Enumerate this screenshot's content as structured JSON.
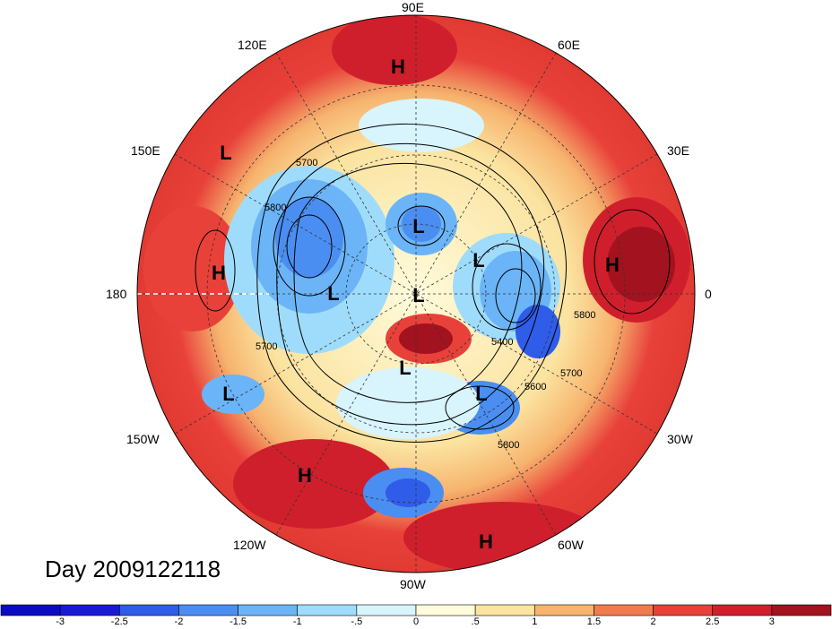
{
  "title": "Day 2009122118",
  "longitude_labels": {
    "lon_90E": "90E",
    "lon_120E": "120E",
    "lon_60E": "60E",
    "lon_150E": "150E",
    "lon_30E": "30E",
    "lon_180": "180",
    "lon_0": "0",
    "lon_150W": "150W",
    "lon_30W": "30W",
    "lon_120W": "120W",
    "lon_60W": "60W",
    "lon_90W": "90W"
  },
  "pressure_centers": [
    {
      "type": "H"
    },
    {
      "type": "L"
    },
    {
      "type": "H"
    },
    {
      "type": "L"
    },
    {
      "type": "L"
    },
    {
      "type": "L"
    },
    {
      "type": "L"
    },
    {
      "type": "H"
    },
    {
      "type": "L"
    },
    {
      "type": "L"
    },
    {
      "type": "L"
    },
    {
      "type": "H"
    },
    {
      "type": "H"
    }
  ],
  "contour_labels": {
    "c5700a": "5700",
    "c5800a": "5800",
    "c5700b": "5700",
    "c5400": "5400",
    "c5600": "5600",
    "c5700c": "5700",
    "c5800b": "5800",
    "c5800c": "5800"
  },
  "colorbar": {
    "tick_labels": [
      "-3",
      "-2.5",
      "-2",
      "-1.5",
      "-1",
      "-.5",
      "0",
      ".5",
      "1",
      "1.5",
      "2",
      "2.5",
      "3"
    ],
    "colors": [
      "#1a1ad6",
      "#2f5ce8",
      "#4a8ef2",
      "#6bb4f7",
      "#9fdcfb",
      "#d8f4fd",
      "#fffbdb",
      "#fbe3a0",
      "#f6b46e",
      "#f07c4e",
      "#e8413a",
      "#cf1f2c",
      "#a3121f"
    ]
  }
}
